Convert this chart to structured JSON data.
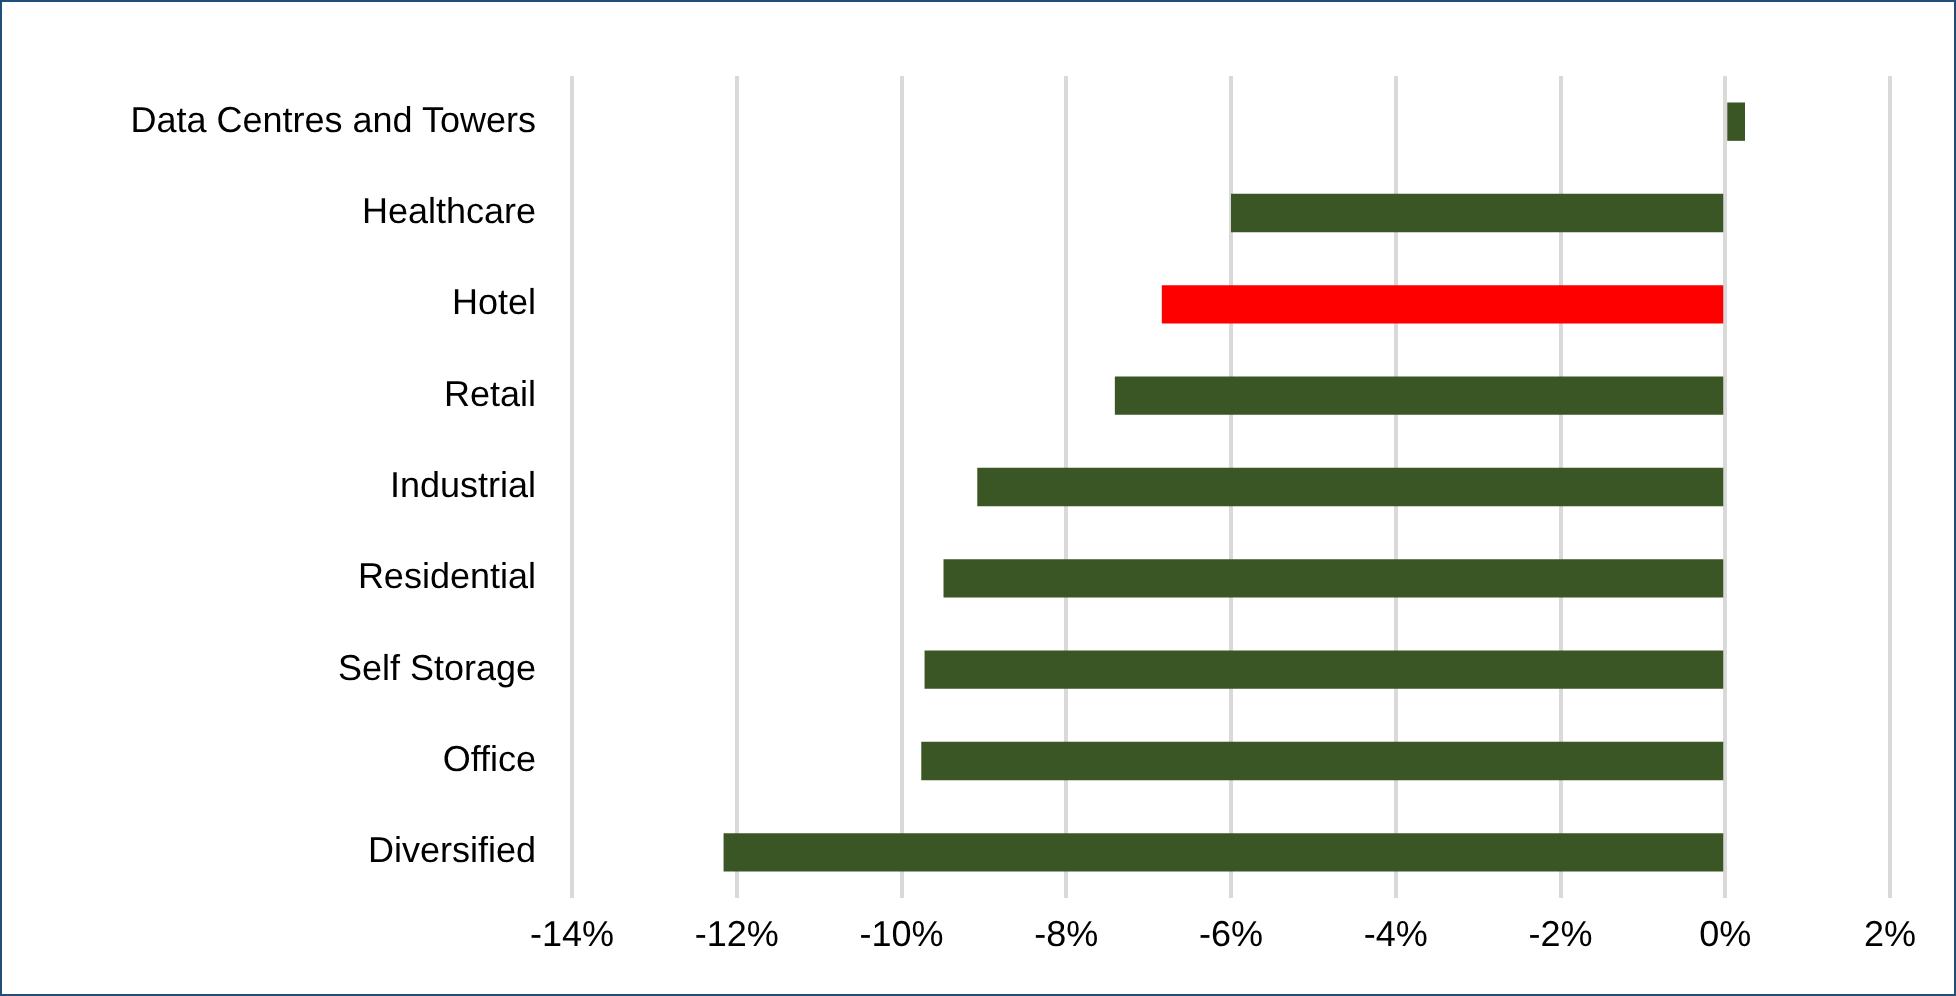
{
  "chart_data": {
    "type": "bar",
    "orientation": "horizontal",
    "categories": [
      "Data Centres and Towers",
      "Healthcare",
      "Hotel",
      "Retail",
      "Industrial",
      "Residential",
      "Self Storage",
      "Office",
      "Diversified"
    ],
    "values": [
      0.24,
      -6.0,
      -6.84,
      -7.41,
      -9.08,
      -9.49,
      -9.72,
      -9.76,
      -12.16
    ],
    "colors": [
      "#3a5624",
      "#3a5624",
      "#ff0000",
      "#3a5624",
      "#3a5624",
      "#3a5624",
      "#3a5624",
      "#3a5624",
      "#3a5624"
    ],
    "xlim": [
      -14,
      2
    ],
    "xticks": [
      {
        "value": -14,
        "label": "-14%"
      },
      {
        "value": -12,
        "label": "-12%"
      },
      {
        "value": -10,
        "label": "-10%"
      },
      {
        "value": -8,
        "label": "-8%"
      },
      {
        "value": -6,
        "label": "-6%"
      },
      {
        "value": -4,
        "label": "-4%"
      },
      {
        "value": -2,
        "label": "-2%"
      },
      {
        "value": 0,
        "label": "0%"
      },
      {
        "value": 2,
        "label": "2%"
      }
    ],
    "grid": "x",
    "legend": false
  }
}
